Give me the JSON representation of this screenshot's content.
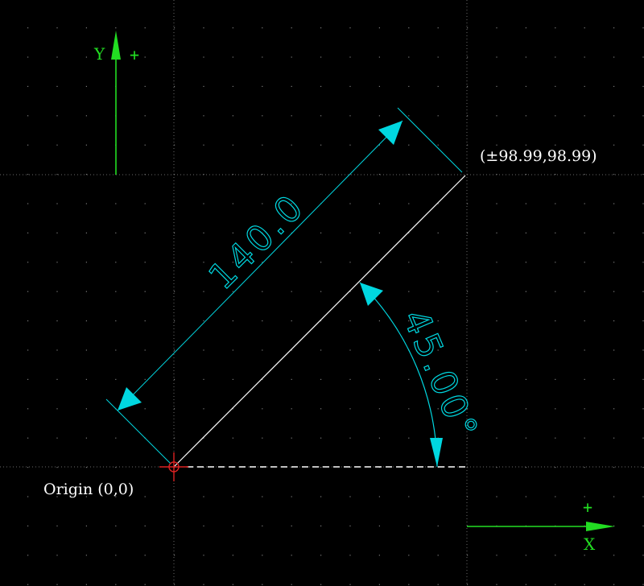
{
  "drawing": {
    "background": "#000000",
    "grid_color": "#7a7a7a",
    "colors": {
      "axis": "#22dd22",
      "dimension": "#00d7e0",
      "line": "#ffffff",
      "origin_marker": "#dd2222"
    }
  },
  "axes": {
    "y_label": "Y",
    "y_plus": "+",
    "x_label": "X",
    "x_plus": "+"
  },
  "origin": {
    "label": "Origin (0,0)"
  },
  "endpoint": {
    "label": "(±98.99,98.99)"
  },
  "dimensions": {
    "length_text": "140.0",
    "angle_text": "45.00°"
  }
}
